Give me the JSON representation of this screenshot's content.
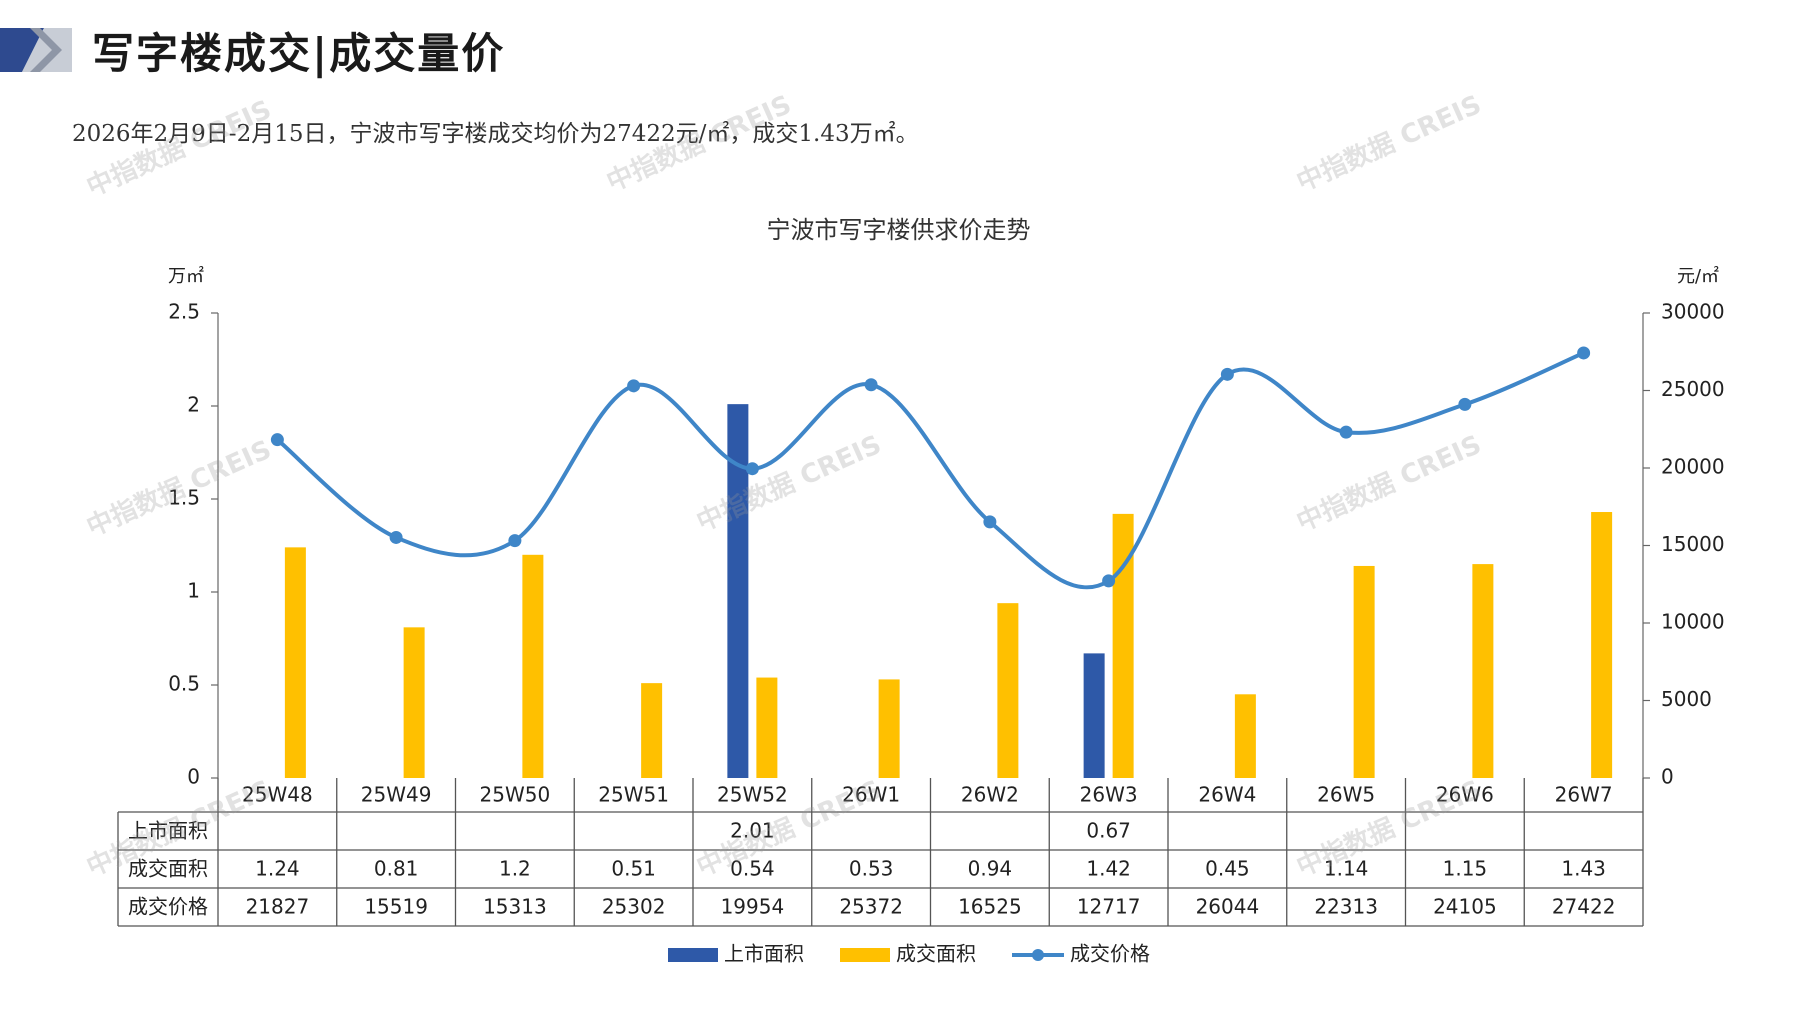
{
  "header": {
    "title": "写字楼成交|成交量价",
    "summary": "2026年2月9日-2月15日，宁波市写字楼成交均价为27422元/㎡，成交1.43万㎡。"
  },
  "watermark": "中指数据 CREIS",
  "colors": {
    "supply": "#2E59A8",
    "deal_area": "#FFC000",
    "price": "#3F86C8",
    "header_mark_dark": "#2E4A8F",
    "header_mark_light": "#B9BFCB"
  },
  "chart_data": {
    "type": "bar",
    "title": "宁波市写字楼供求价走势",
    "categories": [
      "25W48",
      "25W49",
      "25W50",
      "25W51",
      "25W52",
      "26W1",
      "26W2",
      "26W3",
      "26W4",
      "26W5",
      "26W6",
      "26W7"
    ],
    "y_left_unit": "万㎡",
    "y_right_unit": "元/㎡",
    "y_left_ticks": [
      "0",
      "0.5",
      "1",
      "1.5",
      "2",
      "2.5"
    ],
    "y_right_ticks": [
      "0",
      "5000",
      "10000",
      "15000",
      "20000",
      "25000",
      "30000"
    ],
    "ylim_left": [
      0,
      2.5
    ],
    "ylim_right": [
      0,
      30000
    ],
    "series": [
      {
        "name": "上市面积",
        "kind": "bar",
        "axis": "left",
        "values": [
          null,
          null,
          null,
          null,
          2.01,
          null,
          null,
          0.67,
          null,
          null,
          null,
          null
        ],
        "labels": [
          "",
          "",
          "",
          "",
          "2.01",
          "",
          "",
          "0.67",
          "",
          "",
          "",
          ""
        ]
      },
      {
        "name": "成交面积",
        "kind": "bar",
        "axis": "left",
        "values": [
          1.24,
          0.81,
          1.2,
          0.51,
          0.54,
          0.53,
          0.94,
          1.42,
          0.45,
          1.14,
          1.15,
          1.43
        ],
        "labels": [
          "1.24",
          "0.81",
          "1.2",
          "0.51",
          "0.54",
          "0.53",
          "0.94",
          "1.42",
          "0.45",
          "1.14",
          "1.15",
          "1.43"
        ]
      },
      {
        "name": "成交价格",
        "kind": "line",
        "axis": "right",
        "smooth": true,
        "values": [
          21827,
          15519,
          15313,
          25302,
          19954,
          25372,
          16525,
          12717,
          26044,
          22313,
          24105,
          27422
        ],
        "labels": [
          "21827",
          "15519",
          "15313",
          "25302",
          "19954",
          "25372",
          "16525",
          "12717",
          "26044",
          "22313",
          "24105",
          "27422"
        ]
      }
    ],
    "legend_position": "bottom",
    "data_table": true
  }
}
